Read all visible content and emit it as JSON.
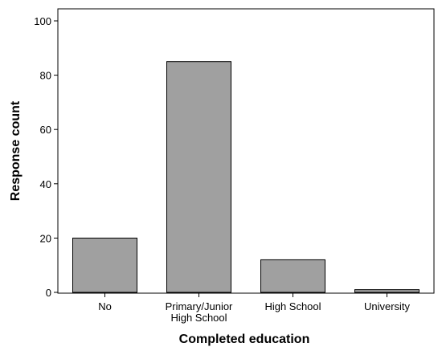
{
  "chart_data": {
    "type": "bar",
    "categories": [
      "No",
      "Primary/Junior\nHigh School",
      "High School",
      "University"
    ],
    "values": [
      20,
      85,
      12,
      1
    ],
    "title": "",
    "xlabel": "Completed education",
    "ylabel": "Response count",
    "ylim": [
      0,
      100
    ],
    "yticks": [
      0,
      20,
      40,
      60,
      80,
      100
    ],
    "grid": false,
    "bar_color": "#a0a0a0",
    "bar_edge_color": "#000000"
  }
}
